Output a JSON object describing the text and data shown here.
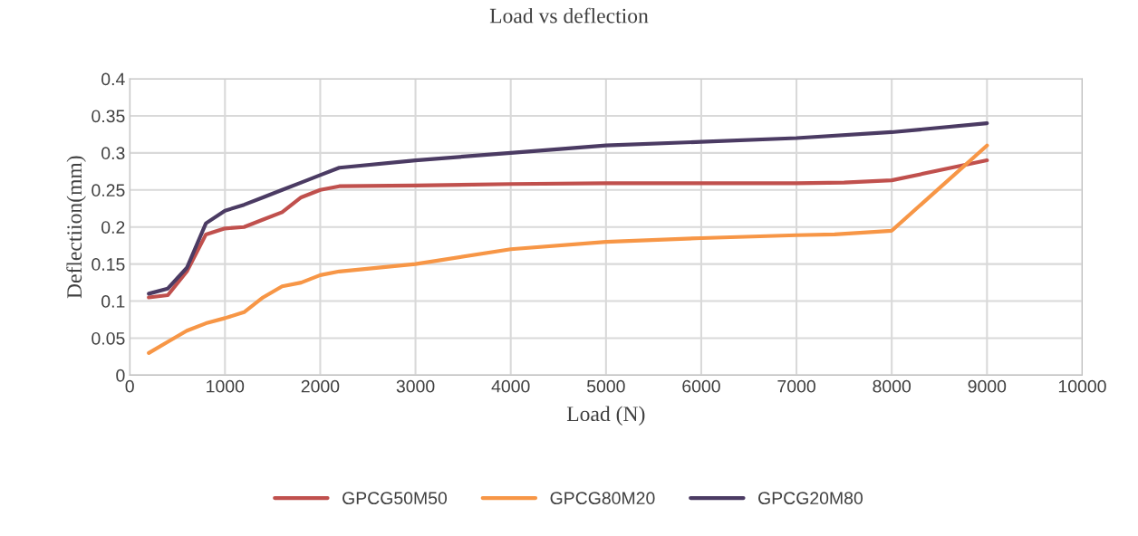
{
  "chart_data": {
    "type": "line",
    "title": "Load vs deflection",
    "xlabel": "Load (N)",
    "ylabel": "Deflectiion(mm)",
    "xlim": [
      0,
      10000
    ],
    "xticks": [
      0,
      1000,
      2000,
      3000,
      4000,
      5000,
      6000,
      7000,
      8000,
      9000,
      10000
    ],
    "ylim": [
      0,
      0.4
    ],
    "yticks": [
      0,
      0.05,
      0.1,
      0.15,
      0.2,
      0.25,
      0.3,
      0.35,
      0.4
    ],
    "grid": true,
    "legend": "bottom",
    "line_style": "solid",
    "marker": "none",
    "series": [
      {
        "name": "GPCG50M50",
        "color": "#c0504d",
        "x": [
          200,
          400,
          600,
          800,
          1000,
          1200,
          1400,
          1600,
          1800,
          2000,
          2200,
          3000,
          4000,
          5000,
          6000,
          7000,
          7500,
          8000,
          9000
        ],
        "values": [
          0.105,
          0.108,
          0.14,
          0.19,
          0.198,
          0.2,
          0.21,
          0.22,
          0.24,
          0.25,
          0.255,
          0.256,
          0.258,
          0.259,
          0.259,
          0.259,
          0.26,
          0.263,
          0.29
        ]
      },
      {
        "name": "GPCG80M20",
        "color": "#f79646",
        "x": [
          200,
          400,
          600,
          800,
          1000,
          1200,
          1400,
          1600,
          1800,
          2000,
          2200,
          3000,
          4000,
          5000,
          6000,
          7000,
          7400,
          8000,
          9000
        ],
        "values": [
          0.03,
          0.045,
          0.06,
          0.07,
          0.077,
          0.085,
          0.105,
          0.12,
          0.125,
          0.135,
          0.14,
          0.15,
          0.17,
          0.18,
          0.185,
          0.189,
          0.19,
          0.195,
          0.31
        ]
      },
      {
        "name": "GPCG20M80",
        "color": "#4b3b63",
        "x": [
          200,
          400,
          600,
          800,
          1000,
          1200,
          1400,
          1600,
          1800,
          2000,
          2200,
          3000,
          4000,
          5000,
          6000,
          7000,
          8000,
          9000
        ],
        "values": [
          0.11,
          0.117,
          0.145,
          0.205,
          0.222,
          0.23,
          0.24,
          0.25,
          0.26,
          0.27,
          0.28,
          0.29,
          0.3,
          0.31,
          0.315,
          0.32,
          0.328,
          0.34
        ]
      }
    ]
  }
}
